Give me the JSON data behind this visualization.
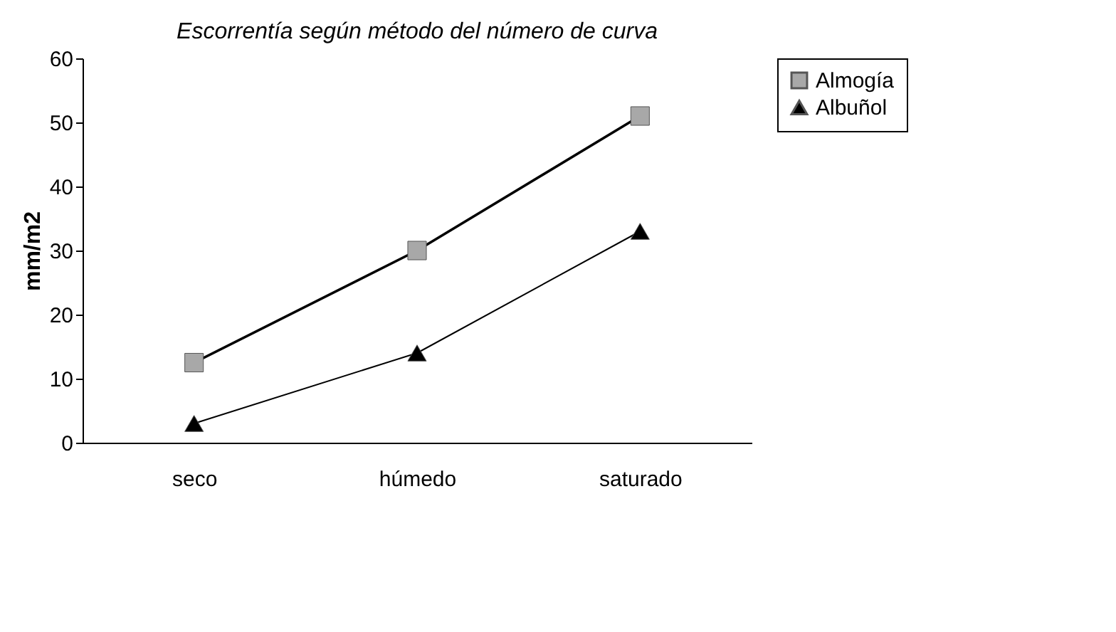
{
  "chart_data": {
    "type": "line",
    "title": "Escorrentía según método del número de curva",
    "ylabel": "mm/m2",
    "categories": [
      "seco",
      "húmedo",
      "saturado"
    ],
    "series": [
      {
        "name": "Almogía",
        "color": "#a8a8a8",
        "marker": "square",
        "values": [
          12.5,
          30,
          51
        ]
      },
      {
        "name": "Albuñol",
        "color": "#000000",
        "marker": "triangle",
        "values": [
          3,
          14,
          33
        ]
      }
    ],
    "ylim": [
      0,
      60
    ],
    "yticks": [
      0,
      10,
      20,
      30,
      40,
      50,
      60
    ],
    "grid": false,
    "legend": "right"
  }
}
